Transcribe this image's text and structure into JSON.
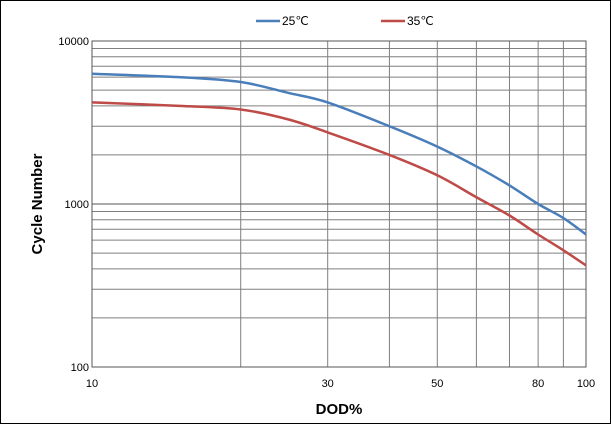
{
  "chart_data": {
    "type": "line",
    "xlabel": "DOD%",
    "ylabel": "Cycle Number",
    "x_scale": "log",
    "y_scale": "log",
    "xlim": [
      10,
      100
    ],
    "ylim": [
      100,
      10000
    ],
    "x_ticks": [
      "10",
      "30",
      "50",
      "80",
      "100"
    ],
    "x_tick_values": [
      10,
      30,
      50,
      80,
      100
    ],
    "y_ticks": [
      "100",
      "1000",
      "10000"
    ],
    "y_tick_values": [
      100,
      1000,
      10000
    ],
    "grid": true,
    "legend_position": "top-center",
    "series": [
      {
        "name": "25℃",
        "color": "#4a7ebb",
        "x": [
          10,
          15,
          20,
          25,
          30,
          40,
          50,
          60,
          70,
          80,
          90,
          100
        ],
        "y": [
          6300,
          6000,
          5600,
          4800,
          4200,
          3000,
          2250,
          1700,
          1300,
          1000,
          820,
          650
        ]
      },
      {
        "name": "35℃",
        "color": "#be4b48",
        "x": [
          10,
          15,
          20,
          25,
          30,
          40,
          50,
          60,
          70,
          80,
          90,
          100
        ],
        "y": [
          4200,
          4000,
          3800,
          3300,
          2750,
          2000,
          1500,
          1100,
          850,
          650,
          520,
          420
        ]
      }
    ]
  }
}
